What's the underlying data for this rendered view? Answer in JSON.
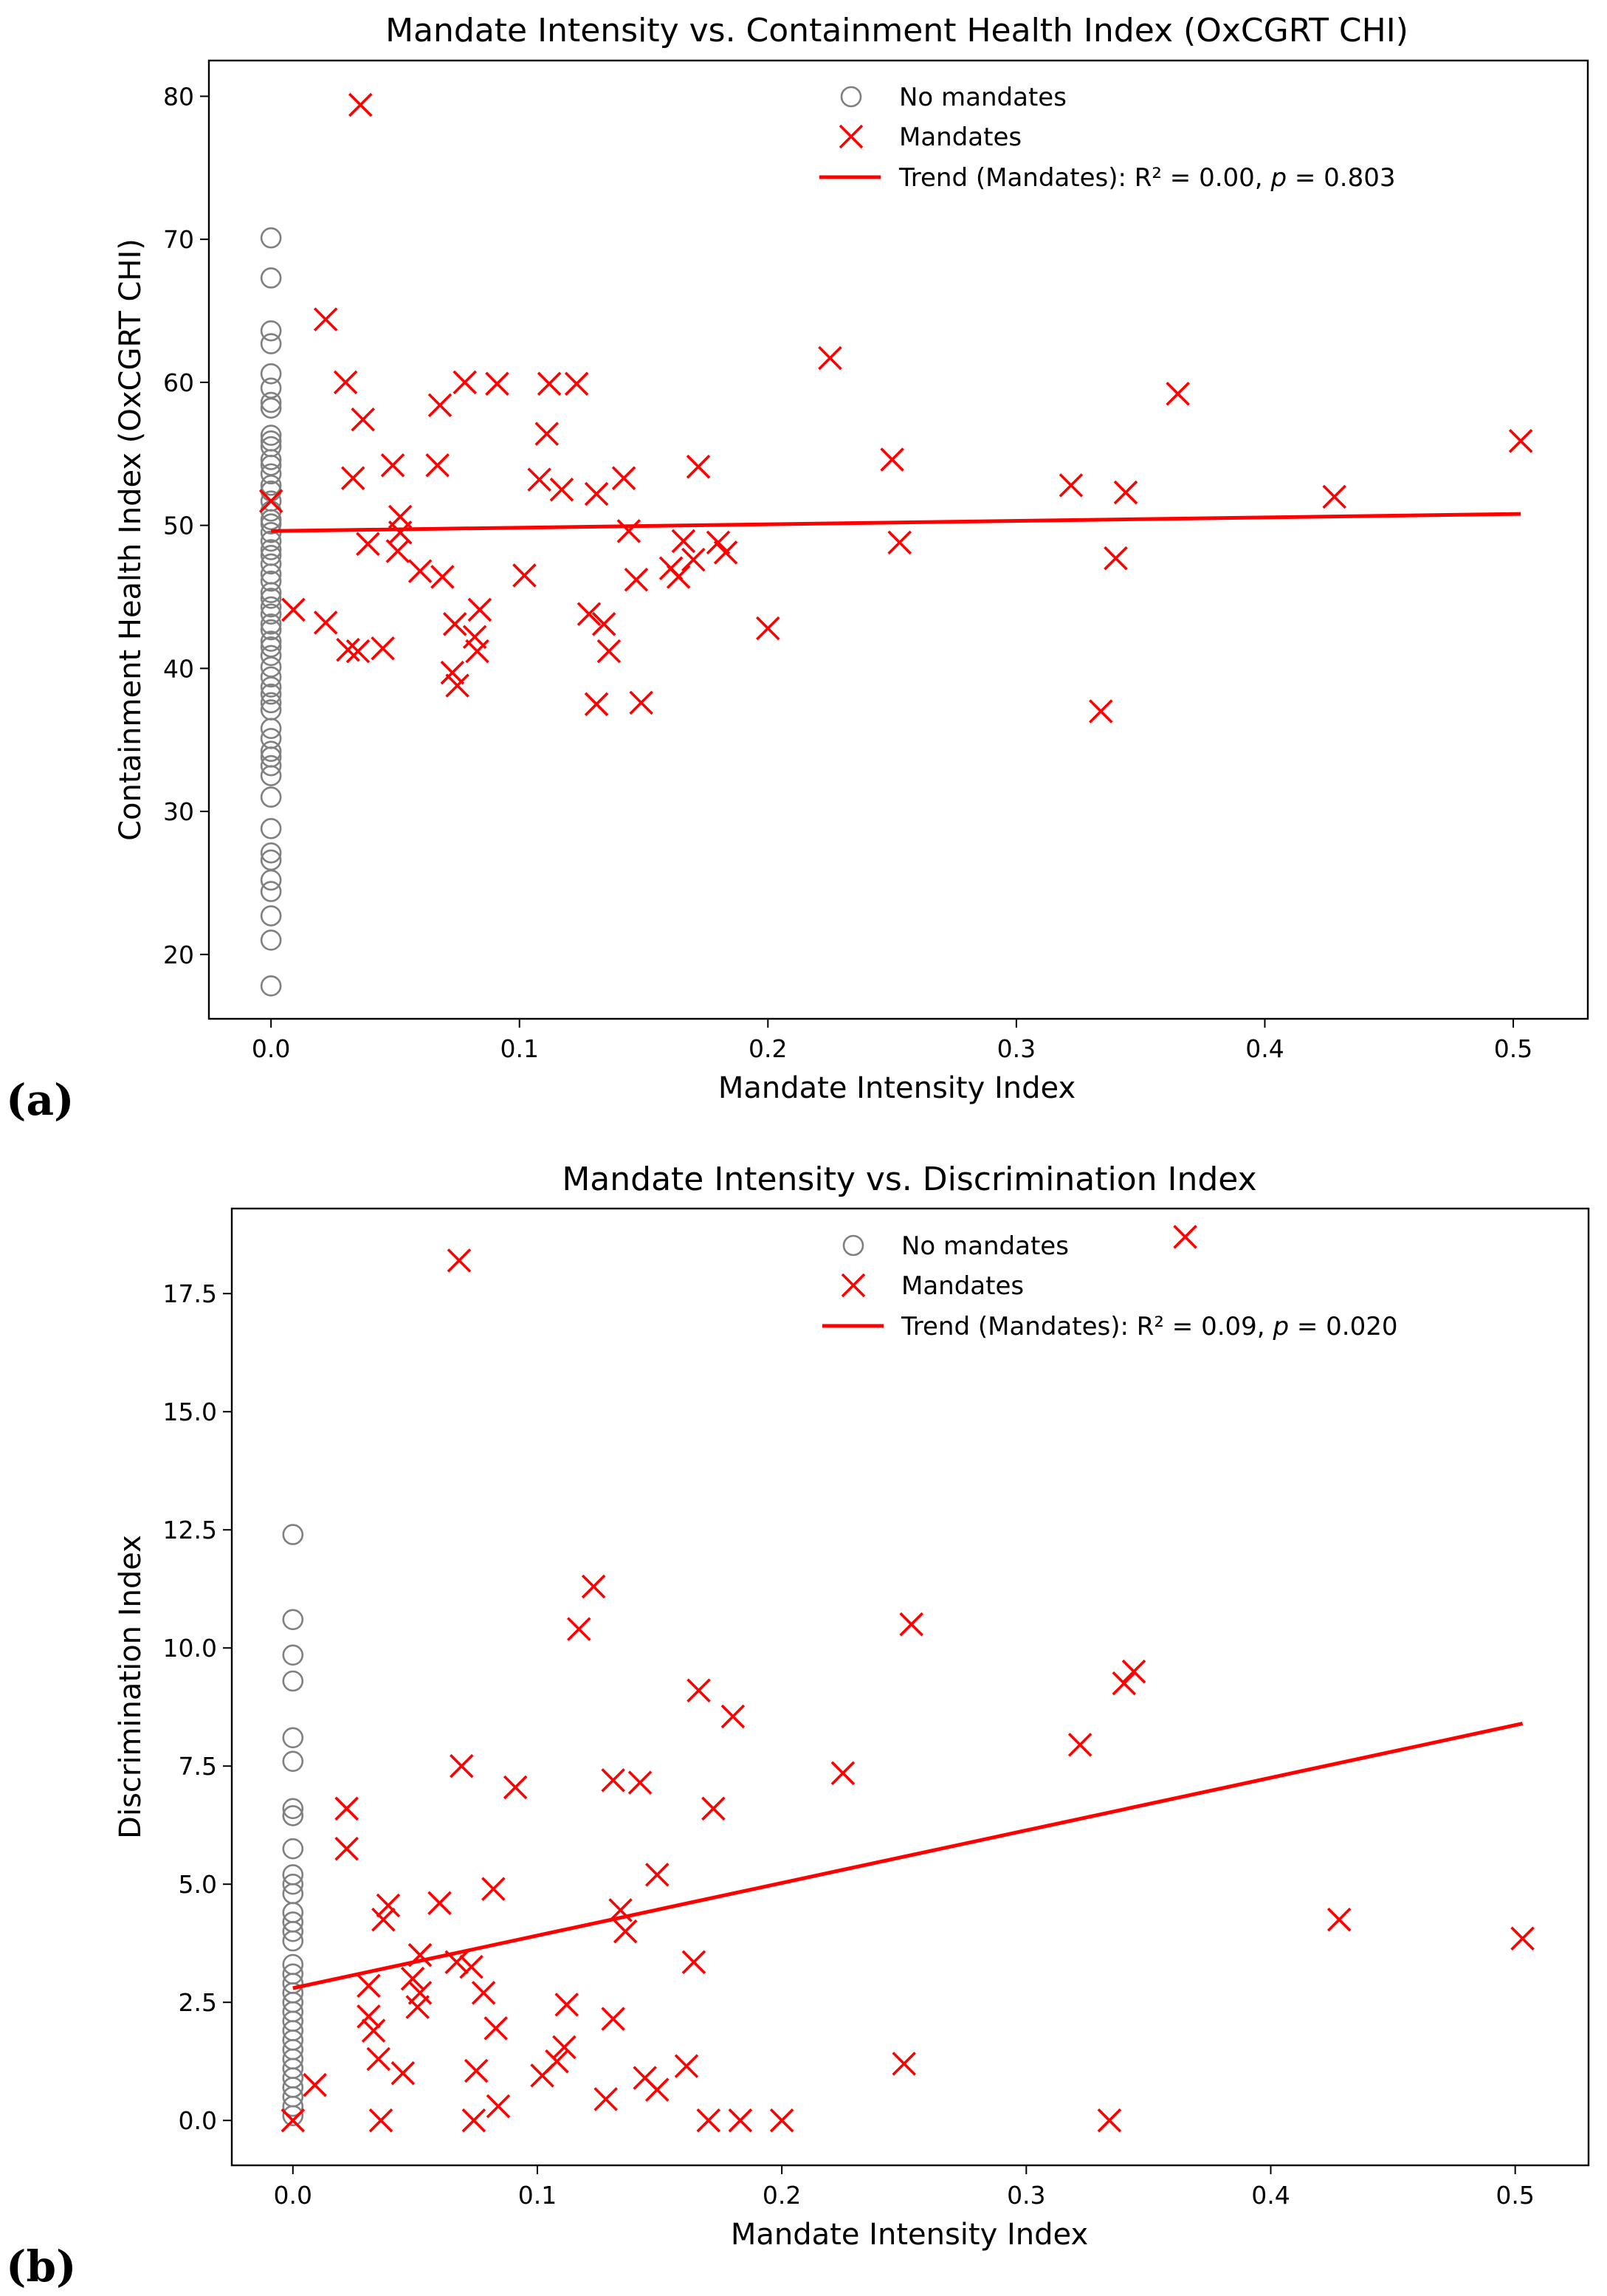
{
  "chart_data": [
    {
      "panel_label": "(a)",
      "type": "scatter",
      "title": "Mandate Intensity vs. Containment Health Index (OxCGRT CHI)",
      "xlabel": "Mandate Intensity Index",
      "ylabel": "Containment Health Index (OxCGRT CHI)",
      "xlim": [
        -0.025,
        0.53
      ],
      "ylim": [
        15.5,
        82.5
      ],
      "xticks": [
        0.0,
        0.1,
        0.2,
        0.3,
        0.4,
        0.5
      ],
      "xtick_labels": [
        "0.0",
        "0.1",
        "0.2",
        "0.3",
        "0.4",
        "0.5"
      ],
      "yticks": [
        20,
        30,
        40,
        50,
        60,
        70,
        80
      ],
      "ytick_labels": [
        "20",
        "30",
        "40",
        "50",
        "60",
        "70",
        "80"
      ],
      "legend": {
        "position": "top-center",
        "entries": [
          "No mandates",
          "Mandates",
          "Trend (Mandates): R² = 0.00, "
        ],
        "stat_p_symbol": "p",
        "stat_p_value": " = 0.803"
      },
      "series": [
        {
          "name": "No mandates",
          "marker": "circle-open",
          "color": "#808080",
          "x": 0.0,
          "y": [
            70.1,
            67.3,
            63.6,
            62.7,
            60.6,
            59.6,
            58.6,
            58.2,
            56.3,
            55.9,
            55.5,
            54.6,
            54.2,
            53.6,
            52.8,
            52.4,
            51.7,
            51.0,
            50.4,
            50.1,
            49.5,
            48.9,
            48.3,
            47.9,
            47.3,
            46.6,
            46.1,
            45.3,
            44.9,
            44.3,
            43.8,
            43.1,
            42.7,
            41.9,
            41.5,
            40.9,
            40.1,
            39.4,
            38.7,
            38.2,
            37.6,
            37.1,
            35.8,
            35.1,
            34.2,
            33.8,
            33.2,
            32.5,
            31.0,
            28.8,
            27.1,
            26.6,
            25.2,
            24.4,
            22.7,
            21.0,
            17.8
          ]
        },
        {
          "name": "Mandates",
          "marker": "x",
          "color": "#ff0000",
          "points": [
            [
              0.0,
              51.7
            ],
            [
              0.009,
              44.1
            ],
            [
              0.022,
              64.4
            ],
            [
              0.022,
              43.2
            ],
            [
              0.03,
              60.0
            ],
            [
              0.031,
              41.3
            ],
            [
              0.033,
              53.3
            ],
            [
              0.035,
              41.2
            ],
            [
              0.036,
              79.4
            ],
            [
              0.037,
              57.4
            ],
            [
              0.039,
              48.7
            ],
            [
              0.045,
              41.4
            ],
            [
              0.049,
              54.2
            ],
            [
              0.051,
              48.2
            ],
            [
              0.052,
              49.5
            ],
            [
              0.052,
              50.6
            ],
            [
              0.06,
              46.8
            ],
            [
              0.067,
              54.2
            ],
            [
              0.068,
              58.4
            ],
            [
              0.069,
              46.4
            ],
            [
              0.073,
              39.7
            ],
            [
              0.074,
              43.1
            ],
            [
              0.075,
              38.8
            ],
            [
              0.078,
              60.0
            ],
            [
              0.082,
              42.2
            ],
            [
              0.083,
              41.2
            ],
            [
              0.084,
              44.1
            ],
            [
              0.091,
              59.9
            ],
            [
              0.102,
              46.5
            ],
            [
              0.108,
              53.2
            ],
            [
              0.111,
              56.4
            ],
            [
              0.112,
              59.9
            ],
            [
              0.117,
              52.5
            ],
            [
              0.123,
              59.9
            ],
            [
              0.128,
              43.8
            ],
            [
              0.131,
              52.2
            ],
            [
              0.131,
              37.5
            ],
            [
              0.134,
              43.1
            ],
            [
              0.136,
              41.2
            ],
            [
              0.142,
              53.3
            ],
            [
              0.144,
              49.6
            ],
            [
              0.147,
              46.2
            ],
            [
              0.149,
              37.6
            ],
            [
              0.161,
              47.0
            ],
            [
              0.164,
              46.4
            ],
            [
              0.166,
              48.9
            ],
            [
              0.17,
              47.6
            ],
            [
              0.172,
              54.1
            ],
            [
              0.18,
              48.8
            ],
            [
              0.183,
              48.1
            ],
            [
              0.2,
              42.8
            ],
            [
              0.225,
              61.7
            ],
            [
              0.25,
              54.6
            ],
            [
              0.253,
              48.8
            ],
            [
              0.322,
              52.8
            ],
            [
              0.334,
              37.0
            ],
            [
              0.34,
              47.7
            ],
            [
              0.344,
              52.3
            ],
            [
              0.365,
              59.2
            ],
            [
              0.428,
              52.0
            ],
            [
              0.503,
              55.9
            ]
          ]
        },
        {
          "name": "Trend (Mandates)",
          "type": "line",
          "color": "#ff0000",
          "x": [
            0.0,
            0.503
          ],
          "y": [
            49.6,
            50.8
          ]
        }
      ]
    },
    {
      "panel_label": "(b)",
      "type": "scatter",
      "title": "Mandate Intensity vs. Discrimination Index",
      "xlabel": "Mandate Intensity Index",
      "ylabel": "Discrimination Index",
      "xlim": [
        -0.025,
        0.53
      ],
      "ylim": [
        -0.95,
        19.3
      ],
      "xticks": [
        0.0,
        0.1,
        0.2,
        0.3,
        0.4,
        0.5
      ],
      "xtick_labels": [
        "0.0",
        "0.1",
        "0.2",
        "0.3",
        "0.4",
        "0.5"
      ],
      "yticks": [
        0.0,
        2.5,
        5.0,
        7.5,
        10.0,
        12.5,
        15.0,
        17.5
      ],
      "ytick_labels": [
        "0.0",
        "2.5",
        "5.0",
        "7.5",
        "10.0",
        "12.5",
        "15.0",
        "17.5"
      ],
      "legend": {
        "position": "top-center",
        "entries": [
          "No mandates",
          "Mandates",
          "Trend (Mandates): R² = 0.09, "
        ],
        "stat_p_symbol": "p",
        "stat_p_value": " = 0.020"
      },
      "series": [
        {
          "name": "No mandates",
          "marker": "circle-open",
          "color": "#808080",
          "x": 0.0,
          "y": [
            12.4,
            10.6,
            9.85,
            9.3,
            8.1,
            7.6,
            6.6,
            6.45,
            5.75,
            5.2,
            5.0,
            4.8,
            4.4,
            4.2,
            4.0,
            3.8,
            3.3,
            3.1,
            2.9,
            2.7,
            2.5,
            2.3,
            2.1,
            1.9,
            1.7,
            1.5,
            1.3,
            1.1,
            0.9,
            0.7,
            0.5,
            0.3,
            0.1
          ]
        },
        {
          "name": "Mandates",
          "marker": "x",
          "color": "#ff0000",
          "points": [
            [
              0.0,
              0.0
            ],
            [
              0.009,
              0.75
            ],
            [
              0.022,
              6.6
            ],
            [
              0.022,
              5.75
            ],
            [
              0.031,
              2.85
            ],
            [
              0.031,
              2.2
            ],
            [
              0.033,
              1.9
            ],
            [
              0.035,
              1.3
            ],
            [
              0.036,
              0.0
            ],
            [
              0.037,
              4.25
            ],
            [
              0.039,
              4.55
            ],
            [
              0.045,
              1.0
            ],
            [
              0.049,
              3.0
            ],
            [
              0.051,
              2.4
            ],
            [
              0.052,
              3.5
            ],
            [
              0.052,
              2.7
            ],
            [
              0.06,
              4.6
            ],
            [
              0.067,
              3.35
            ],
            [
              0.068,
              18.2
            ],
            [
              0.069,
              7.5
            ],
            [
              0.073,
              3.25
            ],
            [
              0.074,
              0.0
            ],
            [
              0.075,
              1.05
            ],
            [
              0.078,
              2.7
            ],
            [
              0.082,
              4.9
            ],
            [
              0.083,
              1.95
            ],
            [
              0.084,
              0.3
            ],
            [
              0.091,
              7.05
            ],
            [
              0.102,
              0.95
            ],
            [
              0.108,
              1.25
            ],
            [
              0.111,
              1.55
            ],
            [
              0.112,
              2.45
            ],
            [
              0.117,
              10.4
            ],
            [
              0.123,
              11.3
            ],
            [
              0.128,
              0.45
            ],
            [
              0.131,
              2.15
            ],
            [
              0.131,
              7.2
            ],
            [
              0.134,
              4.45
            ],
            [
              0.136,
              4.0
            ],
            [
              0.142,
              7.15
            ],
            [
              0.144,
              0.9
            ],
            [
              0.149,
              0.65
            ],
            [
              0.149,
              5.2
            ],
            [
              0.161,
              1.15
            ],
            [
              0.164,
              3.35
            ],
            [
              0.166,
              9.1
            ],
            [
              0.17,
              0.0
            ],
            [
              0.172,
              6.6
            ],
            [
              0.18,
              8.55
            ],
            [
              0.183,
              0.0
            ],
            [
              0.2,
              0.0
            ],
            [
              0.225,
              7.35
            ],
            [
              0.25,
              1.2
            ],
            [
              0.253,
              10.5
            ],
            [
              0.322,
              7.95
            ],
            [
              0.334,
              0.0
            ],
            [
              0.34,
              9.25
            ],
            [
              0.344,
              9.5
            ],
            [
              0.365,
              18.7
            ],
            [
              0.428,
              4.25
            ],
            [
              0.503,
              3.85
            ]
          ]
        },
        {
          "name": "Trend (Mandates)",
          "type": "line",
          "color": "#ff0000",
          "x": [
            0.0,
            0.503
          ],
          "y": [
            2.8,
            8.4
          ]
        }
      ]
    }
  ]
}
